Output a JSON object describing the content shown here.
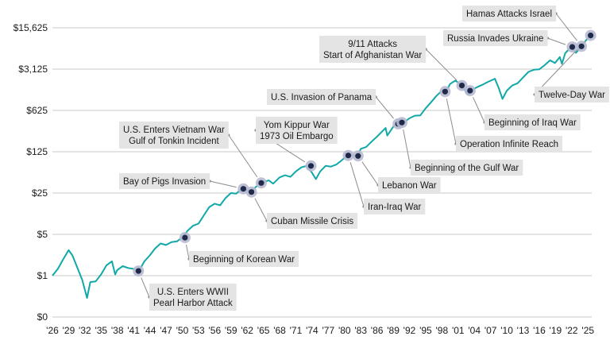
{
  "chart_data": {
    "type": "line",
    "title": "",
    "xlabel": "",
    "ylabel": "",
    "yscale": "log",
    "y_ticks": [
      {
        "value": 0,
        "label": "$0"
      },
      {
        "value": 1,
        "label": "$1"
      },
      {
        "value": 5,
        "label": "$5"
      },
      {
        "value": 25,
        "label": "$25"
      },
      {
        "value": 125,
        "label": "$125"
      },
      {
        "value": 625,
        "label": "$625"
      },
      {
        "value": 3125,
        "label": "$3,125"
      },
      {
        "value": 15625,
        "label": "$15,625"
      }
    ],
    "x_ticks": [
      {
        "year": 1926,
        "label": "'26"
      },
      {
        "year": 1929,
        "label": "'29"
      },
      {
        "year": 1932,
        "label": "'32"
      },
      {
        "year": 1935,
        "label": "'35"
      },
      {
        "year": 1938,
        "label": "'38"
      },
      {
        "year": 1941,
        "label": "'41"
      },
      {
        "year": 1944,
        "label": "'44"
      },
      {
        "year": 1947,
        "label": "'47"
      },
      {
        "year": 1950,
        "label": "'50"
      },
      {
        "year": 1953,
        "label": "'53"
      },
      {
        "year": 1956,
        "label": "'56"
      },
      {
        "year": 1959,
        "label": "'59"
      },
      {
        "year": 1962,
        "label": "'62"
      },
      {
        "year": 1965,
        "label": "'65"
      },
      {
        "year": 1968,
        "label": "'68"
      },
      {
        "year": 1971,
        "label": "'71"
      },
      {
        "year": 1974,
        "label": "'74"
      },
      {
        "year": 1977,
        "label": "'77"
      },
      {
        "year": 1980,
        "label": "'80"
      },
      {
        "year": 1983,
        "label": "'83"
      },
      {
        "year": 1986,
        "label": "'86"
      },
      {
        "year": 1989,
        "label": "'89"
      },
      {
        "year": 1992,
        "label": "'92"
      },
      {
        "year": 1995,
        "label": "'95"
      },
      {
        "year": 1998,
        "label": "'98"
      },
      {
        "year": 2001,
        "label": "'01"
      },
      {
        "year": 2004,
        "label": "'04"
      },
      {
        "year": 2007,
        "label": "'07"
      },
      {
        "year": 2010,
        "label": "'10"
      },
      {
        "year": 2013,
        "label": "'13"
      },
      {
        "year": 2016,
        "label": "'16"
      },
      {
        "year": 2019,
        "label": "'19"
      },
      {
        "year": 2022,
        "label": "'22"
      },
      {
        "year": 2025,
        "label": "'25"
      }
    ],
    "grid": true,
    "series": [
      {
        "color": "#10a8a8",
        "points": [
          [
            1926.0,
            1.0
          ],
          [
            1927.0,
            1.3
          ],
          [
            1928.0,
            1.9
          ],
          [
            1929.0,
            2.7
          ],
          [
            1929.7,
            2.2
          ],
          [
            1930.5,
            1.45
          ],
          [
            1931.5,
            0.85
          ],
          [
            1932.4,
            0.42
          ],
          [
            1933.0,
            0.78
          ],
          [
            1934.0,
            0.8
          ],
          [
            1935.0,
            1.05
          ],
          [
            1936.0,
            1.5
          ],
          [
            1937.0,
            1.75
          ],
          [
            1937.6,
            1.05
          ],
          [
            1938.0,
            1.25
          ],
          [
            1939.0,
            1.45
          ],
          [
            1940.0,
            1.35
          ],
          [
            1941.0,
            1.3
          ],
          [
            1941.9,
            1.2
          ],
          [
            1942.5,
            1.45
          ],
          [
            1943.0,
            1.75
          ],
          [
            1944.0,
            2.2
          ],
          [
            1945.0,
            2.9
          ],
          [
            1946.0,
            3.5
          ],
          [
            1947.0,
            3.3
          ],
          [
            1948.0,
            3.7
          ],
          [
            1949.0,
            3.8
          ],
          [
            1950.0,
            4.4
          ],
          [
            1951.0,
            5.8
          ],
          [
            1952.0,
            7.0
          ],
          [
            1953.0,
            7.6
          ],
          [
            1954.0,
            10.5
          ],
          [
            1955.0,
            14.5
          ],
          [
            1956.0,
            16.5
          ],
          [
            1957.0,
            15.5
          ],
          [
            1958.0,
            20.5
          ],
          [
            1959.0,
            25.0
          ],
          [
            1960.0,
            24.5
          ],
          [
            1961.0,
            30.0
          ],
          [
            1962.0,
            27.5
          ],
          [
            1962.8,
            26.0
          ],
          [
            1963.5,
            31.0
          ],
          [
            1964.5,
            37.0
          ],
          [
            1966.0,
            41.0
          ],
          [
            1966.8,
            36.0
          ],
          [
            1968.0,
            46.0
          ],
          [
            1969.0,
            50.0
          ],
          [
            1970.0,
            47.0
          ],
          [
            1971.0,
            58.0
          ],
          [
            1972.0,
            68.0
          ],
          [
            1973.0,
            72.0
          ],
          [
            1974.0,
            55.0
          ],
          [
            1974.7,
            43.0
          ],
          [
            1975.5,
            58.0
          ],
          [
            1976.5,
            72.0
          ],
          [
            1977.5,
            70.0
          ],
          [
            1978.5,
            76.0
          ],
          [
            1979.5,
            90.0
          ],
          [
            1980.5,
            108.0
          ],
          [
            1981.5,
            108.0
          ],
          [
            1982.4,
            102.0
          ],
          [
            1983.0,
            140.0
          ],
          [
            1984.0,
            150.0
          ],
          [
            1985.0,
            185.0
          ],
          [
            1986.0,
            225.0
          ],
          [
            1987.6,
            315.0
          ],
          [
            1987.9,
            235.0
          ],
          [
            1989.0,
            330.0
          ],
          [
            1990.0,
            405.0
          ],
          [
            1990.8,
            385.0
          ],
          [
            1992.0,
            460.0
          ],
          [
            1993.0,
            510.0
          ],
          [
            1994.0,
            515.0
          ],
          [
            1995.0,
            680.0
          ],
          [
            1996.0,
            860.0
          ],
          [
            1997.0,
            1100.0
          ],
          [
            1998.2,
            1400.0
          ],
          [
            1998.7,
            1250.0
          ],
          [
            1999.5,
            1750.0
          ],
          [
            2000.5,
            2000.0
          ],
          [
            2001.7,
            1650.0
          ],
          [
            2002.8,
            1150.0
          ],
          [
            2003.3,
            1350.0
          ],
          [
            2004.5,
            1550.0
          ],
          [
            2005.5,
            1700.0
          ],
          [
            2006.5,
            1900.0
          ],
          [
            2007.8,
            2150.0
          ],
          [
            2008.5,
            1500.0
          ],
          [
            2009.2,
            980.0
          ],
          [
            2010.0,
            1350.0
          ],
          [
            2011.0,
            1650.0
          ],
          [
            2012.0,
            1800.0
          ],
          [
            2013.0,
            2250.0
          ],
          [
            2014.0,
            2800.0
          ],
          [
            2015.0,
            3050.0
          ],
          [
            2016.0,
            3100.0
          ],
          [
            2017.0,
            3650.0
          ],
          [
            2018.0,
            4400.0
          ],
          [
            2018.9,
            3950.0
          ],
          [
            2019.8,
            5000.0
          ],
          [
            2020.2,
            3850.0
          ],
          [
            2020.8,
            5800.0
          ],
          [
            2021.9,
            7400.0
          ],
          [
            2022.8,
            5900.0
          ],
          [
            2023.8,
            7600.0
          ],
          [
            2024.6,
            9500.0
          ],
          [
            2025.5,
            11600.0
          ]
        ]
      }
    ],
    "events": [
      {
        "year": 1941.9,
        "value": 1.2,
        "label": [
          "U.S. Enters WWII",
          "Pearl Harbor Attack"
        ]
      },
      {
        "year": 1950.5,
        "value": 4.4,
        "label": [
          "Beginning of Korean War"
        ]
      },
      {
        "year": 1961.3,
        "value": 29.5,
        "label": [
          "Bay of Pigs Invasion"
        ]
      },
      {
        "year": 1962.8,
        "value": 26.0,
        "label": [
          "Cuban Missile Crisis"
        ]
      },
      {
        "year": 1964.6,
        "value": 37.0,
        "label": [
          "U.S. Enters Vietnam War",
          "Gulf of Tonkin Incident"
        ]
      },
      {
        "year": 1973.8,
        "value": 72.0,
        "label": [
          "Yom Kippur War",
          "1973 Oil Embargo"
        ]
      },
      {
        "year": 1980.7,
        "value": 108.0,
        "label": [
          "Iran-Iraq War"
        ]
      },
      {
        "year": 1982.5,
        "value": 106.0,
        "label": [
          "Lebanon War"
        ]
      },
      {
        "year": 1989.9,
        "value": 370.0,
        "label": [
          "U.S. Invasion of Panama"
        ]
      },
      {
        "year": 1990.6,
        "value": 390.0,
        "label": [
          "Beginning of the Gulf War"
        ]
      },
      {
        "year": 1998.6,
        "value": 1300.0,
        "label": [
          "Operation Infinite Reach"
        ]
      },
      {
        "year": 2001.7,
        "value": 1650.0,
        "label": [
          "9/11 Attacks",
          "Start of Afghanistan War"
        ]
      },
      {
        "year": 2003.2,
        "value": 1350.0,
        "label": [
          "Beginning of Iraq War"
        ]
      },
      {
        "year": 2022.1,
        "value": 7400.0,
        "label": [
          "Russia Invades Ukraine"
        ]
      },
      {
        "year": 2023.8,
        "value": 7600.0,
        "label": [
          "Hamas Attacks Israel"
        ]
      },
      {
        "year": 2025.5,
        "value": 11600.0,
        "label": [
          "Twelve-Day War"
        ]
      }
    ]
  }
}
